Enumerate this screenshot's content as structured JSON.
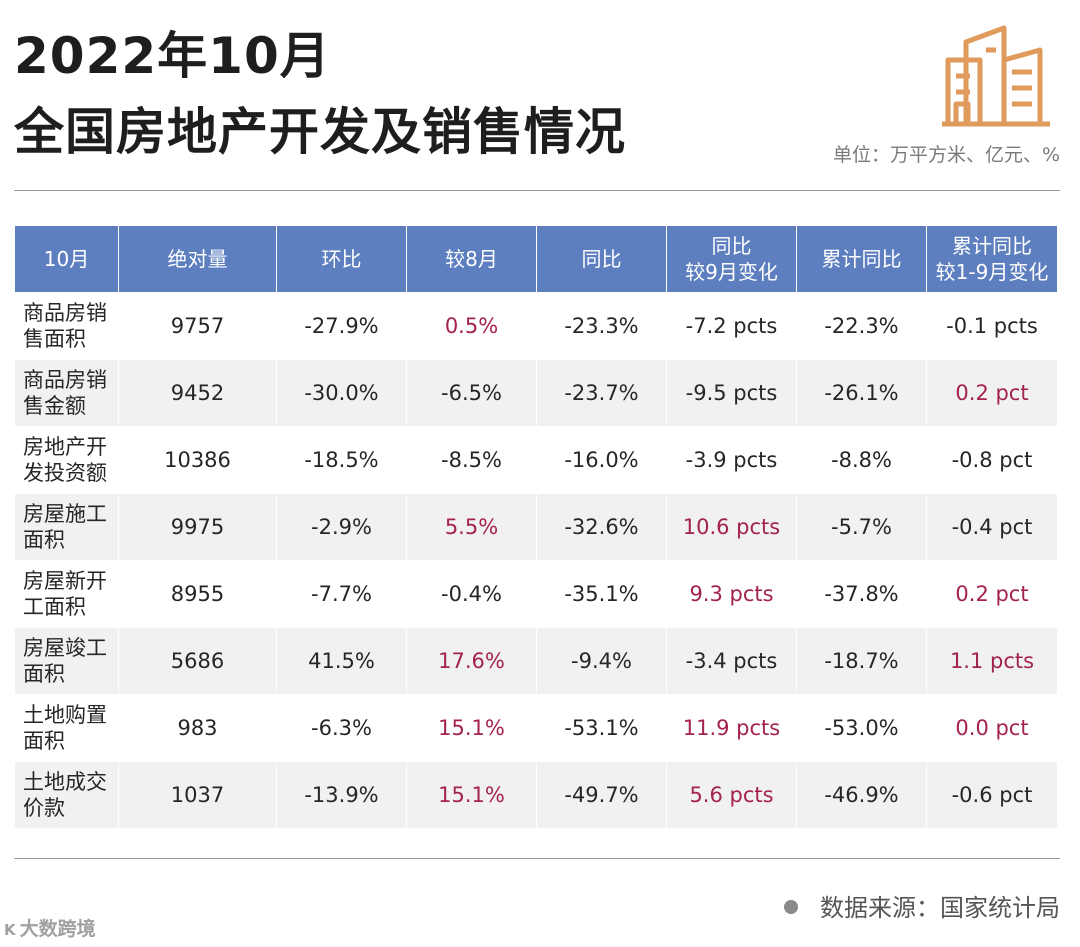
{
  "header": {
    "title_line1": "2022年10月",
    "title_line2": "全国房地产开发及销售情况",
    "unit": "单位：万平方米、亿元、%"
  },
  "icons": {
    "logo": "buildings-icon",
    "bullet": "dot-icon"
  },
  "colors": {
    "header_bg": "#5d7fbf",
    "highlight_red": "#a3234a",
    "stripe": "#f1f1f1",
    "logo_orange": "#e09a5c"
  },
  "table": {
    "columns": [
      "10月",
      "绝对量",
      "环比",
      "较8月",
      "同比",
      "同比|较9月变化",
      "累计同比",
      "累计同比|较1-9月变化"
    ],
    "rows": [
      {
        "label": "商品房销|售面积",
        "cells": [
          "9757",
          "-27.9%",
          "0.5%",
          "-23.3%",
          "-7.2 pcts",
          "-22.3%",
          "-0.1 pcts"
        ],
        "red": [
          false,
          false,
          true,
          false,
          false,
          false,
          false
        ]
      },
      {
        "label": "商品房销|售金额",
        "cells": [
          "9452",
          "-30.0%",
          "-6.5%",
          "-23.7%",
          "-9.5 pcts",
          "-26.1%",
          "0.2 pct"
        ],
        "red": [
          false,
          false,
          false,
          false,
          false,
          false,
          true
        ]
      },
      {
        "label": "房地产开|发投资额",
        "cells": [
          "10386",
          "-18.5%",
          "-8.5%",
          "-16.0%",
          "-3.9 pcts",
          "-8.8%",
          "-0.8 pct"
        ],
        "red": [
          false,
          false,
          false,
          false,
          false,
          false,
          false
        ]
      },
      {
        "label": "房屋施工|面积",
        "cells": [
          "9975",
          "-2.9%",
          "5.5%",
          "-32.6%",
          "10.6 pcts",
          "-5.7%",
          "-0.4 pct"
        ],
        "red": [
          false,
          false,
          true,
          false,
          true,
          false,
          false
        ]
      },
      {
        "label": "房屋新开|工面积",
        "cells": [
          "8955",
          "-7.7%",
          "-0.4%",
          "-35.1%",
          "9.3 pcts",
          "-37.8%",
          "0.2 pct"
        ],
        "red": [
          false,
          false,
          false,
          false,
          true,
          false,
          true
        ]
      },
      {
        "label": "房屋竣工|面积",
        "cells": [
          "5686",
          "41.5%",
          "17.6%",
          "-9.4%",
          "-3.4 pcts",
          "-18.7%",
          "1.1 pcts"
        ],
        "red": [
          false,
          false,
          true,
          false,
          false,
          false,
          true
        ]
      },
      {
        "label": "土地购置|面积",
        "cells": [
          "983",
          "-6.3%",
          "15.1%",
          "-53.1%",
          "11.9 pcts",
          "-53.0%",
          "0.0 pct"
        ],
        "red": [
          false,
          false,
          true,
          false,
          true,
          false,
          true
        ]
      },
      {
        "label": "土地成交|价款",
        "cells": [
          "1037",
          "-13.9%",
          "15.1%",
          "-49.7%",
          "5.6 pcts",
          "-46.9%",
          "-0.6 pct"
        ],
        "red": [
          false,
          false,
          true,
          false,
          true,
          false,
          false
        ]
      }
    ]
  },
  "footer": {
    "source": "数据来源：国家统计局",
    "watermark": "大数跨境",
    "watermark_logo": "K"
  }
}
